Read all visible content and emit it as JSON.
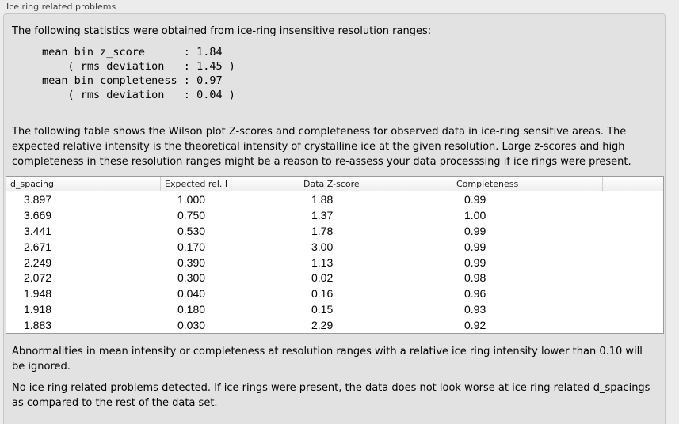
{
  "colors": {
    "outer_background": "#ececec",
    "panel_background": "#e2e2e2",
    "panel_border": "#c6c6c6",
    "table_border": "#9a9a9a"
  },
  "group_box": {
    "title": "Ice ring related problems"
  },
  "content": {
    "intro": "The following statistics were obtained from ice-ring insensitive resolution ranges:",
    "stats_block": "mean bin z_score      : 1.84\n    ( rms deviation   : 1.45 )\nmean bin completeness : 0.97\n    ( rms deviation   : 0.04 )",
    "table_description": "The following table shows the Wilson plot Z-scores and completeness for observed data in ice-ring sensitive areas. The expected relative intensity is the theoretical intensity of crystalline ice at the given resolution. Large z-scores and high completeness in these resolution ranges might be a reason to re-assess your data processsing if ice rings were present.",
    "ignore_note": "Abnormalities in mean intensity or completeness at resolution ranges with a relative ice ring intensity lower than 0.10 will be ignored.",
    "conclusion": "No ice ring related problems detected. If ice rings were present, the data does not look worse at ice ring related d_spacings as compared to the rest of the data set."
  },
  "table": {
    "columns": [
      "d_spacing",
      "Expected rel. I",
      "Data Z-score",
      "Completeness"
    ],
    "rows": [
      [
        "3.897",
        "1.000",
        "1.88",
        "0.99"
      ],
      [
        "3.669",
        "0.750",
        "1.37",
        "1.00"
      ],
      [
        "3.441",
        "0.530",
        "1.78",
        "0.99"
      ],
      [
        "2.671",
        "0.170",
        "3.00",
        "0.99"
      ],
      [
        "2.249",
        "0.390",
        "1.13",
        "0.99"
      ],
      [
        "2.072",
        "0.300",
        "0.02",
        "0.98"
      ],
      [
        "1.948",
        "0.040",
        "0.16",
        "0.96"
      ],
      [
        "1.918",
        "0.180",
        "0.15",
        "0.93"
      ],
      [
        "1.883",
        "0.030",
        "2.29",
        "0.92"
      ]
    ]
  }
}
